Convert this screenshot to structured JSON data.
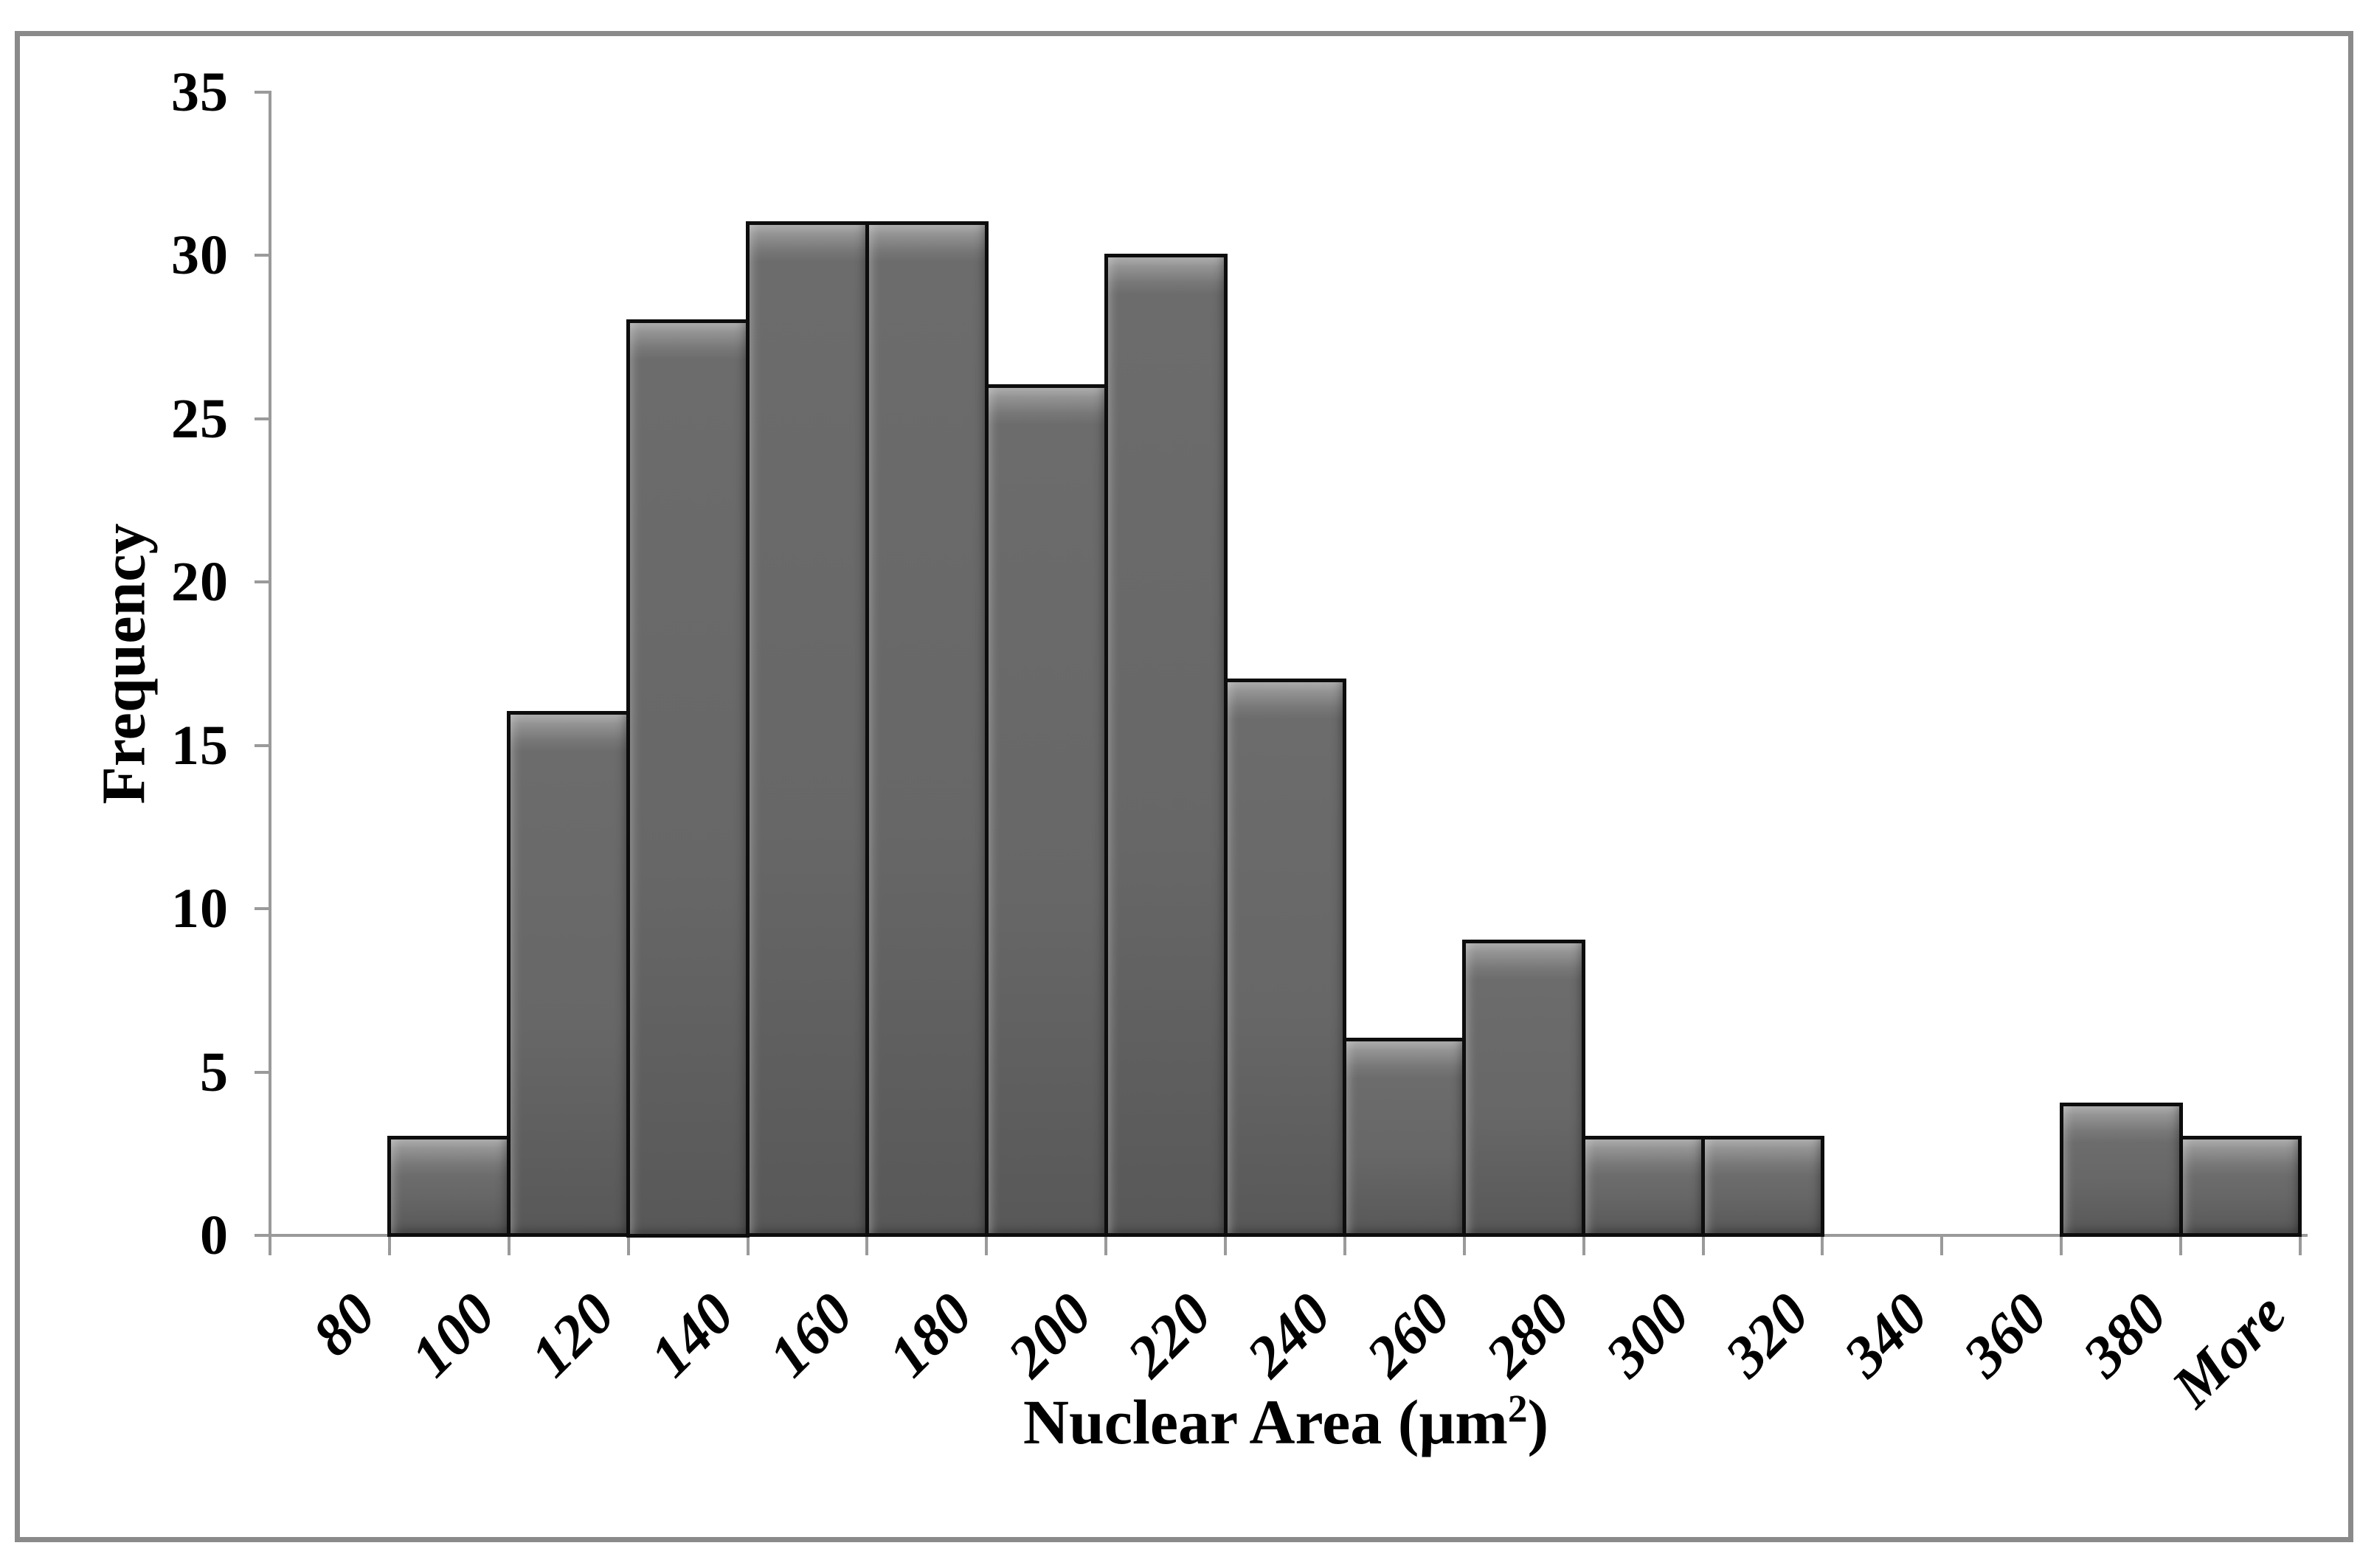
{
  "chart_data": {
    "type": "bar",
    "subtype": "histogram",
    "title": "",
    "categories": [
      "80",
      "100",
      "120",
      "140",
      "160",
      "180",
      "200",
      "220",
      "240",
      "260",
      "280",
      "300",
      "320",
      "340",
      "360",
      "380",
      "More"
    ],
    "values": [
      0,
      3,
      16,
      28,
      31,
      31,
      26,
      30,
      17,
      6,
      9,
      3,
      3,
      0,
      0,
      4,
      3
    ],
    "xlabel": "Nuclear Area (μm²)",
    "xlabel_parts": {
      "prefix": "Nuclear Area (μm",
      "sup": "2",
      "suffix": ")"
    },
    "ylabel": "Frequency",
    "ylim": [
      0,
      35
    ],
    "ytick_step": 5,
    "grid": false,
    "legend": false,
    "gap_between_bars": 0,
    "bar_color": "#6b6b6b",
    "bar_highlight_color": "#aeaeae",
    "bar_border_color": "#0d0d0d",
    "axis_color": "#9a9a9a",
    "frame_color": "#8a8a8a",
    "background_color": "#ffffff",
    "text_color": "#000000"
  }
}
